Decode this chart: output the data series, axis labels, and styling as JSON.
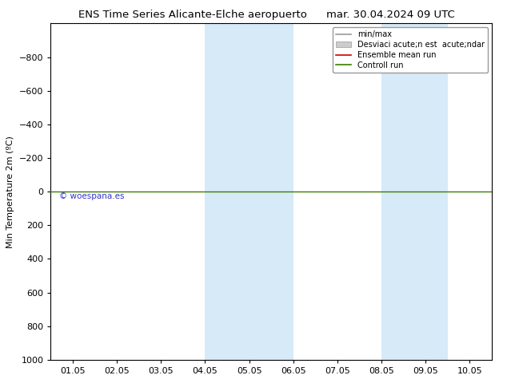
{
  "title_left": "ENS Time Series Alicante-Elche aeropuerto",
  "title_right": "mar. 30.04.2024 09 UTC",
  "ylabel": "Min Temperature 2m (ºC)",
  "ylim_top": -1000,
  "ylim_bottom": 1000,
  "yticks": [
    -800,
    -600,
    -400,
    -200,
    0,
    200,
    400,
    600,
    800,
    1000
  ],
  "x_labels": [
    "01.05",
    "02.05",
    "03.05",
    "04.05",
    "05.05",
    "06.05",
    "07.05",
    "08.05",
    "09.05",
    "10.05"
  ],
  "x_values": [
    0,
    1,
    2,
    3,
    4,
    5,
    6,
    7,
    8,
    9
  ],
  "xlim": [
    -0.5,
    9.5
  ],
  "shaded_bands": [
    {
      "x_start": 3.0,
      "x_end": 5.0
    },
    {
      "x_start": 7.0,
      "x_end": 8.5
    }
  ],
  "band_color": "#d6eaf8",
  "green_line_y": 0,
  "green_line_color": "#3a7d00",
  "red_line_color": "#cc0000",
  "watermark": "© woespana.es",
  "watermark_color": "#3333cc",
  "legend_label_minmax": "min/max",
  "legend_label_std": "Desviaci acute;n est  acute;ndar",
  "legend_label_ensemble": "Ensemble mean run",
  "legend_label_control": "Controll run",
  "legend_color_minmax": "#999999",
  "legend_color_std": "#cccccc",
  "bg_color": "#ffffff",
  "title_fontsize": 9.5,
  "tick_fontsize": 8,
  "ylabel_fontsize": 8
}
